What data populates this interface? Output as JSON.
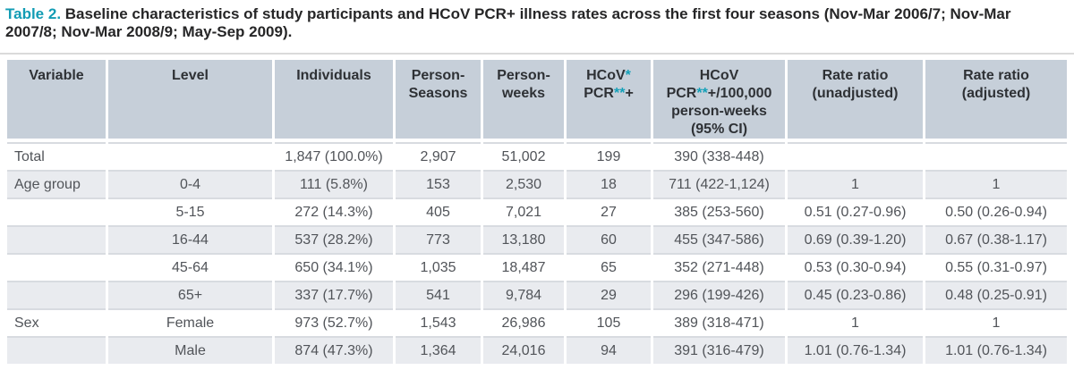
{
  "title": {
    "label": "Table 2.",
    "text": "Baseline characteristics of study participants and HCoV PCR+ illness rates across the first four seasons (Nov-Mar 2006/7; Nov-Mar 2007/8; Nov-Mar 2008/9; May-Sep 2009)."
  },
  "colors": {
    "accent_teal": "#129cb4",
    "header_background": "#c6cfd9",
    "alternate_row_background": "#e9ebef",
    "row_divider": "#d8dbe0"
  },
  "table": {
    "columns": [
      {
        "id": "variable",
        "label": "Variable"
      },
      {
        "id": "level",
        "label": "Level"
      },
      {
        "id": "individuals",
        "label": "Individuals"
      },
      {
        "id": "person-seasons",
        "label": "Person-\nSeasons"
      },
      {
        "id": "person-weeks",
        "label": "Person-\nweeks"
      },
      {
        "id": "hcov-pcr-positive",
        "label": "HCoV{*}\nPCR{**}+"
      },
      {
        "id": "hcov-pcr-rate-per-100000",
        "label": "HCoV\nPCR{**}+/100,000\nperson-weeks\n(95% CI)"
      },
      {
        "id": "rate-ratio-unadjusted",
        "label": "Rate ratio\n(unadjusted)"
      },
      {
        "id": "rate-ratio-adjusted",
        "label": "Rate ratio\n(adjusted)"
      }
    ],
    "rows": [
      [
        "Total",
        "",
        "1,847 (100.0%)",
        "2,907",
        "51,002",
        "199",
        "390 (338-448)",
        "",
        ""
      ],
      [
        "Age group",
        "0-4",
        "111 (5.8%)",
        "153",
        "2,530",
        "18",
        "711 (422-1,124)",
        "1",
        "1"
      ],
      [
        "",
        "5-15",
        "272 (14.3%)",
        "405",
        "7,021",
        "27",
        "385 (253-560)",
        "0.51 (0.27-0.96)",
        "0.50 (0.26-0.94)"
      ],
      [
        "",
        "16-44",
        "537 (28.2%)",
        "773",
        "13,180",
        "60",
        "455 (347-586)",
        "0.69 (0.39-1.20)",
        "0.67 (0.38-1.17)"
      ],
      [
        "",
        "45-64",
        "650 (34.1%)",
        "1,035",
        "18,487",
        "65",
        "352 (271-448)",
        "0.53 (0.30-0.94)",
        "0.55 (0.31-0.97)"
      ],
      [
        "",
        "65+",
        "337 (17.7%)",
        "541",
        "9,784",
        "29",
        "296 (199-426)",
        "0.45 (0.23-0.86)",
        "0.48 (0.25-0.91)"
      ],
      [
        "Sex",
        "Female",
        "973 (52.7%)",
        "1,543",
        "26,986",
        "105",
        "389 (318-471)",
        "1",
        "1"
      ],
      [
        "",
        "Male",
        "874 (47.3%)",
        "1,364",
        "24,016",
        "94",
        "391 (316-479)",
        "1.01 (0.76-1.34)",
        "1.01 (0.76-1.34)"
      ]
    ]
  }
}
